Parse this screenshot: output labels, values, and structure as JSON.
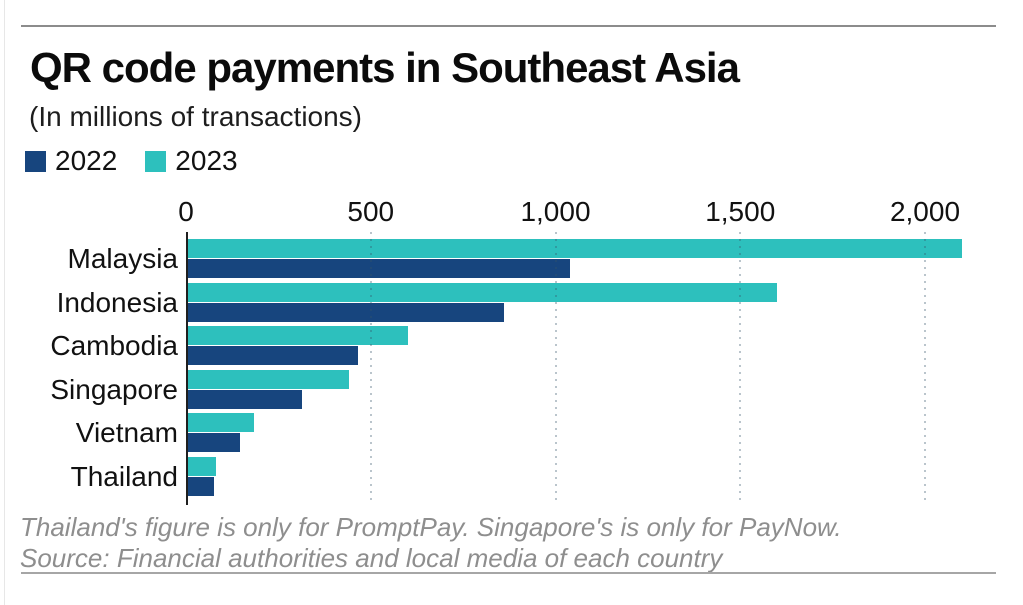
{
  "header": {
    "title": "QR code payments in Southeast Asia",
    "subtitle": "(In millions of transactions)"
  },
  "chart_data": {
    "type": "bar",
    "orientation": "horizontal",
    "title": "QR code payments in Southeast Asia",
    "subtitle": "(In millions of transactions)",
    "categories": [
      "Malaysia",
      "Indonesia",
      "Cambodia",
      "Singapore",
      "Vietnam",
      "Thailand"
    ],
    "series": [
      {
        "name": "2022",
        "color": "#17457E",
        "values": [
          1040,
          860,
          465,
          315,
          145,
          75
        ]
      },
      {
        "name": "2023",
        "color": "#2DC0BD",
        "values": [
          2100,
          1600,
          600,
          440,
          185,
          80
        ]
      }
    ],
    "xlim": [
      0,
      2230
    ],
    "xticks": [
      0,
      500,
      1000,
      1500,
      2000
    ],
    "xtick_labels": [
      "0",
      "500",
      "1,000",
      "1,500",
      "2,000"
    ],
    "grid": "vertical-dotted",
    "legend_position": "top-left",
    "bar_order_within_group": [
      "2023",
      "2022"
    ]
  },
  "footer": {
    "note": "Thailand's figure is only for PromptPay. Singapore's is only for PayNow.",
    "source": "Source: Financial authorities and local media of each country"
  },
  "colors": {
    "series_2022": "#17457E",
    "series_2023": "#2DC0BD",
    "axis_line": "#1f1f1f",
    "rule": "#8c8c8c",
    "footer_text": "#8e8e8e",
    "background": "#ffffff"
  }
}
